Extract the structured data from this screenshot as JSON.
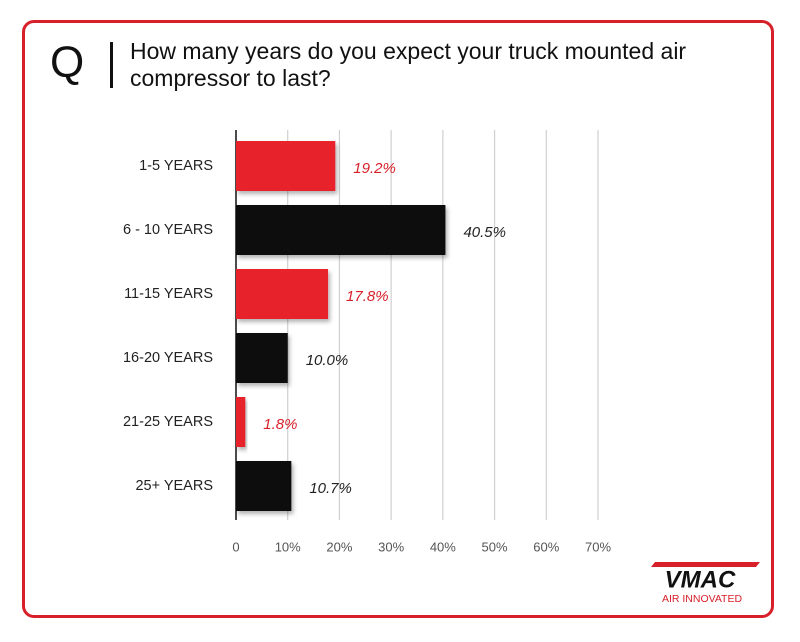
{
  "chart_data": {
    "type": "bar",
    "orientation": "horizontal",
    "question_marker": "Q",
    "title": "How many years do you expect your truck mounted air compressor to last?",
    "categories": [
      "1-5 YEARS",
      "6 - 10 YEARS",
      "11-15 YEARS",
      "16-20 YEARS",
      "21-25 YEARS",
      "25+ YEARS"
    ],
    "values": [
      19.2,
      40.5,
      17.8,
      10.0,
      1.8,
      10.7
    ],
    "value_labels": [
      "19.2%",
      "40.5%",
      "17.8%",
      "10.0%",
      "1.8%",
      "10.7%"
    ],
    "colors": [
      "#e8232b",
      "#0a0a0a",
      "#e8232b",
      "#0a0a0a",
      "#e8232b",
      "#0a0a0a"
    ],
    "label_colors": [
      "#d8202a",
      "#222222",
      "#d8202a",
      "#222222",
      "#d8202a",
      "#222222"
    ],
    "xlim": [
      0,
      70
    ],
    "xticks": [
      0,
      {
        "value": 10,
        "label": "10%"
      },
      {
        "value": 20,
        "label": "20%"
      },
      {
        "value": 30,
        "label": "30%"
      },
      {
        "value": 40,
        "label": "40%"
      },
      {
        "value": 50,
        "label": "50%"
      },
      {
        "value": 60,
        "label": "60%"
      },
      {
        "value": 70,
        "label": "70%"
      }
    ],
    "grid": true,
    "logo": {
      "name": "VMAC",
      "tagline": "AIR INNOVATED"
    }
  }
}
